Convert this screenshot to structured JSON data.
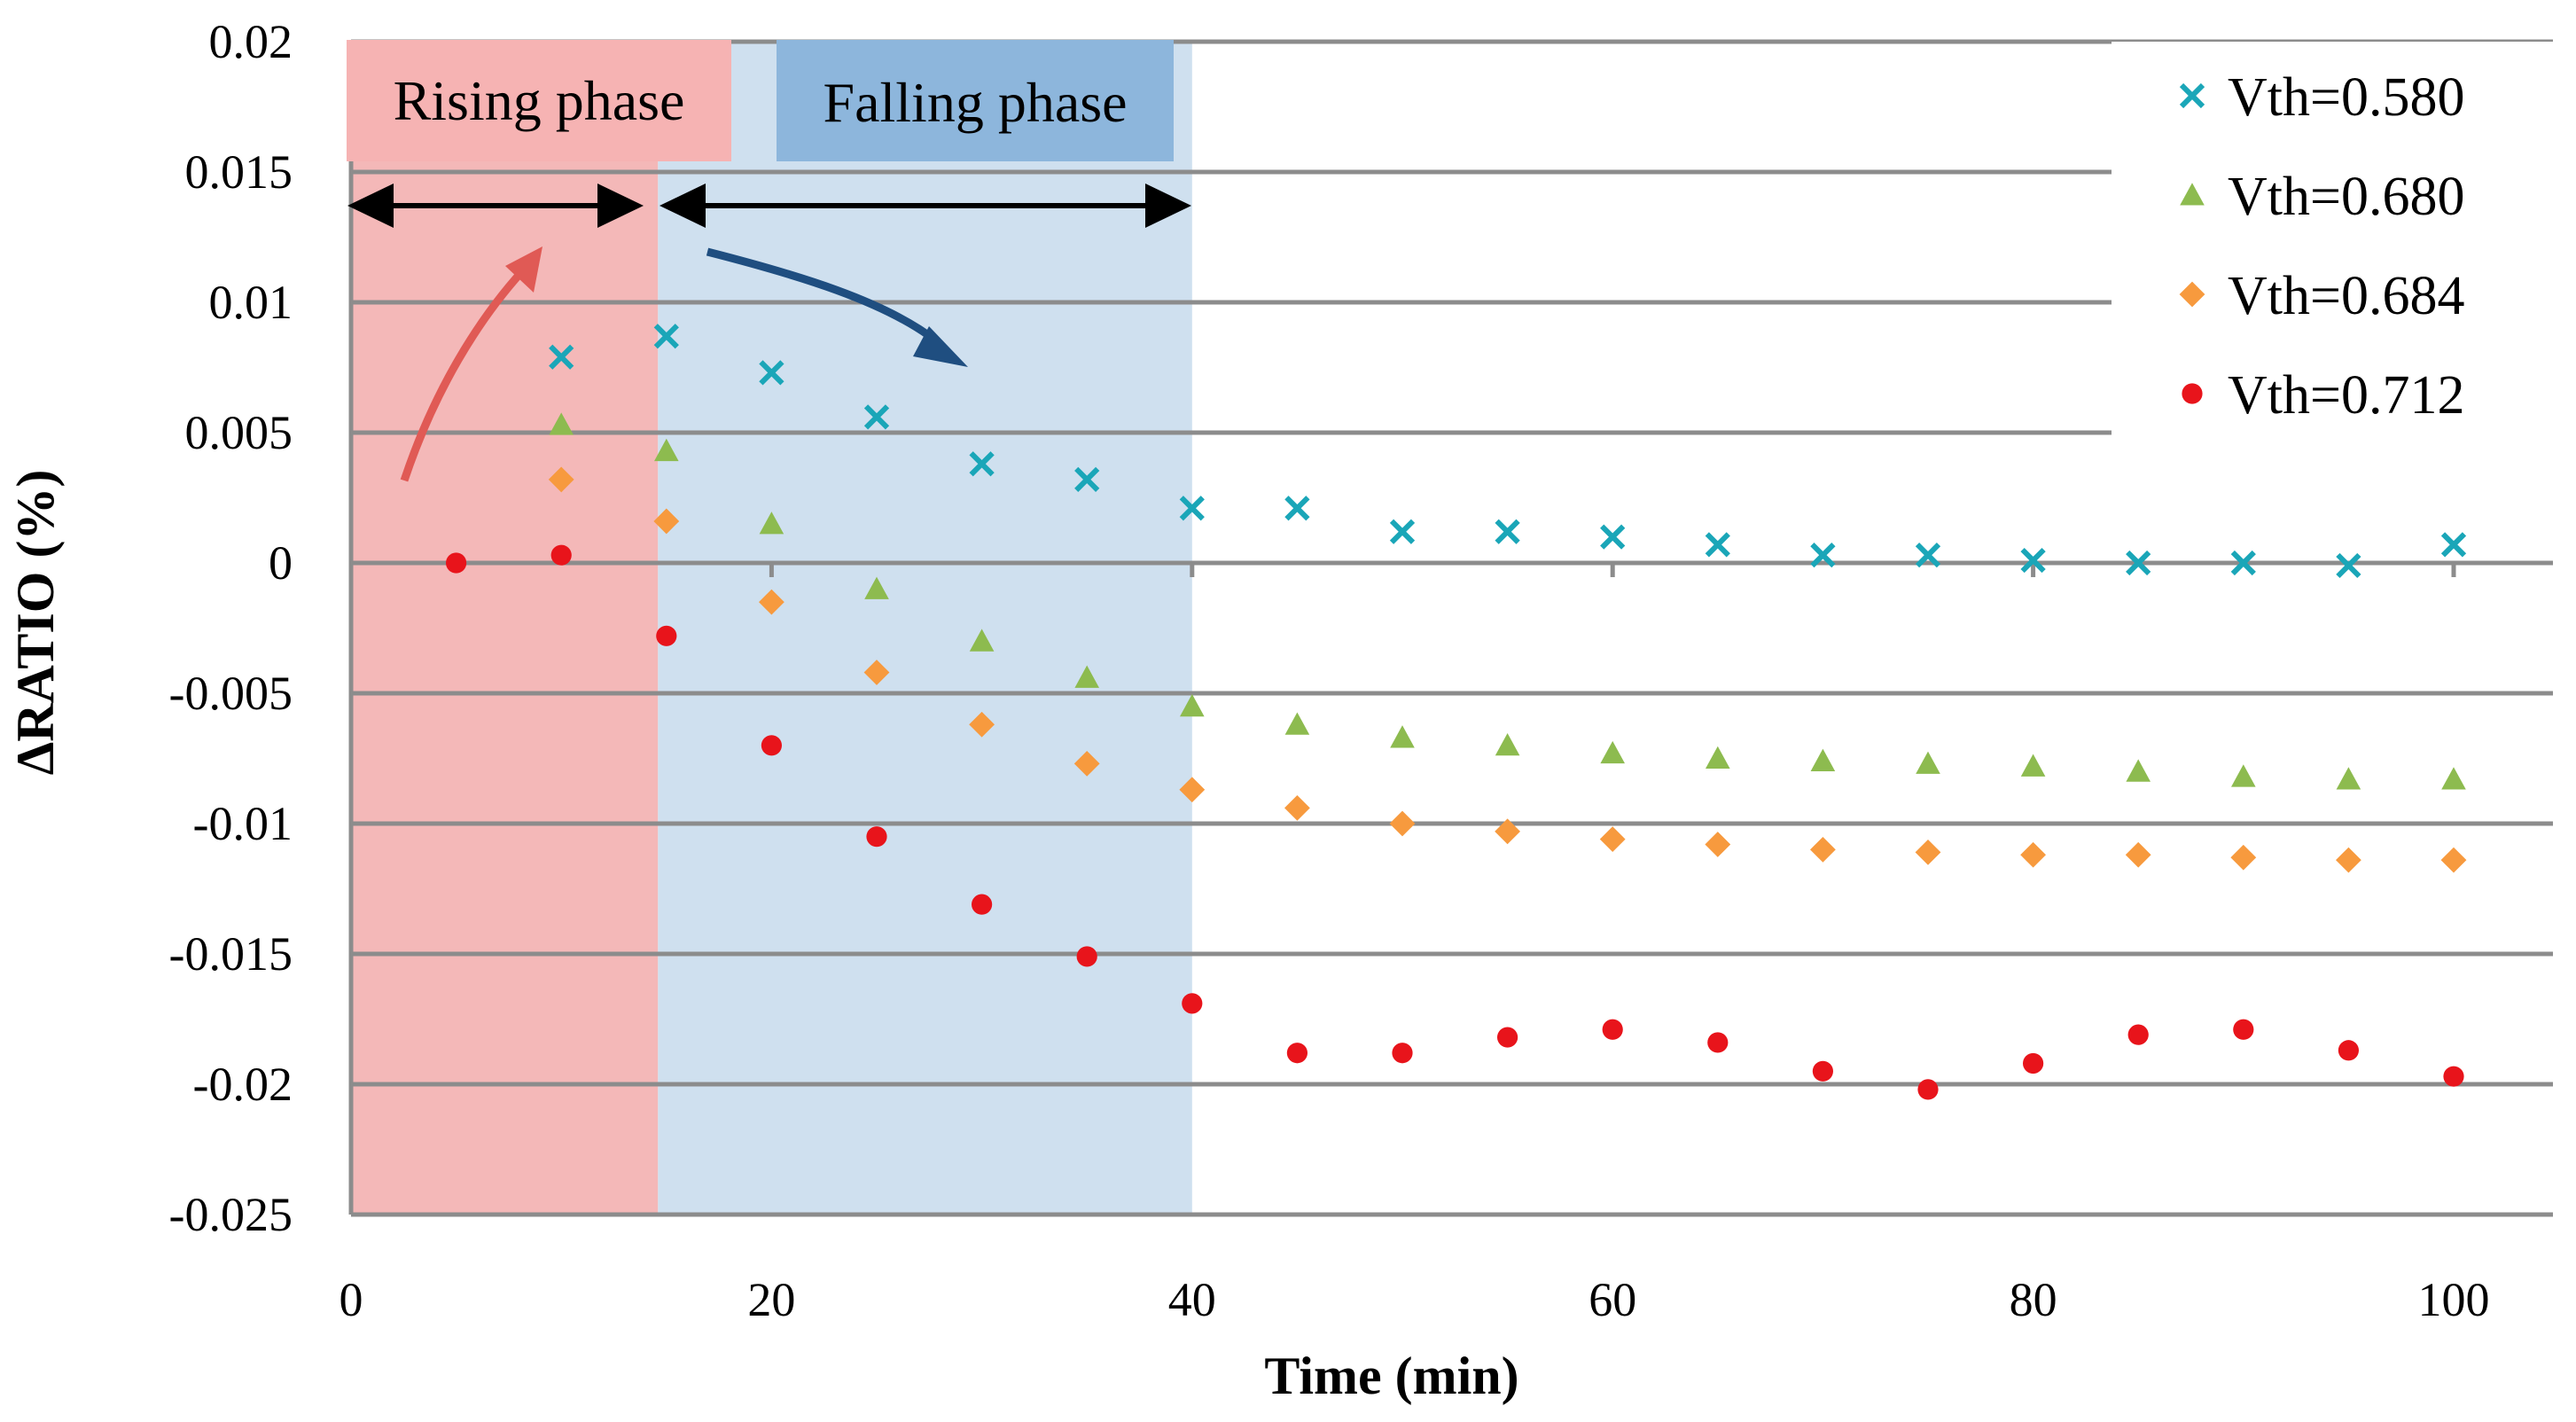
{
  "chart_data": {
    "type": "scatter",
    "title": "",
    "xlabel": "Time (min)",
    "ylabel": "ΔRATIO (%)",
    "xlim": [
      0,
      105
    ],
    "ylim": [
      -0.025,
      0.02
    ],
    "x_ticks": [
      0,
      20,
      40,
      60,
      80,
      100
    ],
    "x_tick_labels": [
      "0",
      "20",
      "40",
      "60",
      "80",
      "100"
    ],
    "y_ticks": [
      0.02,
      0.015,
      0.01,
      0.005,
      0,
      -0.005,
      -0.01,
      -0.015,
      -0.02,
      -0.025
    ],
    "y_tick_labels": [
      "0.02",
      "0.015",
      "0.01",
      "0.005",
      "0",
      "-0.005",
      "-0.01",
      "-0.015",
      "-0.02",
      "-0.025"
    ],
    "grid": "horizontal",
    "legend_position": "top-right",
    "phases": [
      {
        "name": "Rising phase",
        "x_start": 0,
        "x_end": 14.6,
        "color": "#f4b8b8"
      },
      {
        "name": "Falling phase",
        "x_start": 14.6,
        "x_end": 40,
        "color": "#cfe0ef"
      }
    ],
    "phase_label_colors": {
      "rising": "#f6b3b3",
      "falling": "#8db6dc"
    },
    "arrow_colors": {
      "rising": "#e05a55",
      "falling": "#1f4e80",
      "span": "#000000"
    },
    "series": [
      {
        "name": "Vth=0.580",
        "marker": "x",
        "color": "#1aa6b8",
        "x": [
          10,
          15,
          20,
          25,
          30,
          35,
          40,
          45,
          50,
          55,
          60,
          65,
          70,
          75,
          80,
          85,
          90,
          95,
          100
        ],
        "y": [
          0.0079,
          0.0087,
          0.0073,
          0.0056,
          0.0038,
          0.0032,
          0.0021,
          0.0021,
          0.0012,
          0.0012,
          0.001,
          0.0007,
          0.0003,
          0.0003,
          0.0001,
          0.0,
          0.0,
          -0.0001,
          0.0007
        ]
      },
      {
        "name": "Vth=0.680",
        "marker": "triangle",
        "color": "#8dbb4f",
        "x": [
          10,
          15,
          20,
          25,
          30,
          35,
          40,
          45,
          50,
          55,
          60,
          65,
          70,
          75,
          80,
          85,
          90,
          95,
          100
        ],
        "y": [
          0.0053,
          0.0043,
          0.0015,
          -0.001,
          -0.003,
          -0.0044,
          -0.0055,
          -0.0062,
          -0.0067,
          -0.007,
          -0.0073,
          -0.0075,
          -0.0076,
          -0.0077,
          -0.0078,
          -0.008,
          -0.0082,
          -0.0083,
          -0.0083
        ]
      },
      {
        "name": "Vth=0.684",
        "marker": "diamond",
        "color": "#f79a3e",
        "x": [
          10,
          15,
          20,
          25,
          30,
          35,
          40,
          45,
          50,
          55,
          60,
          65,
          70,
          75,
          80,
          85,
          90,
          95,
          100
        ],
        "y": [
          0.0032,
          0.0016,
          -0.0015,
          -0.0042,
          -0.0062,
          -0.0077,
          -0.0087,
          -0.0094,
          -0.01,
          -0.0103,
          -0.0106,
          -0.0108,
          -0.011,
          -0.0111,
          -0.0112,
          -0.0112,
          -0.0113,
          -0.0114,
          -0.0114
        ]
      },
      {
        "name": "Vth=0.712",
        "marker": "circle",
        "color": "#e8141b",
        "x": [
          5,
          10,
          15,
          20,
          25,
          30,
          35,
          40,
          45,
          50,
          55,
          60,
          65,
          70,
          75,
          80,
          85,
          90,
          95,
          100
        ],
        "y": [
          0.0,
          0.0003,
          -0.0028,
          -0.007,
          -0.0105,
          -0.0131,
          -0.0151,
          -0.0169,
          -0.0188,
          -0.0188,
          -0.0182,
          -0.0179,
          -0.0184,
          -0.0195,
          -0.0202,
          -0.0192,
          -0.0181,
          -0.0179,
          -0.0187,
          -0.0197
        ]
      }
    ]
  }
}
